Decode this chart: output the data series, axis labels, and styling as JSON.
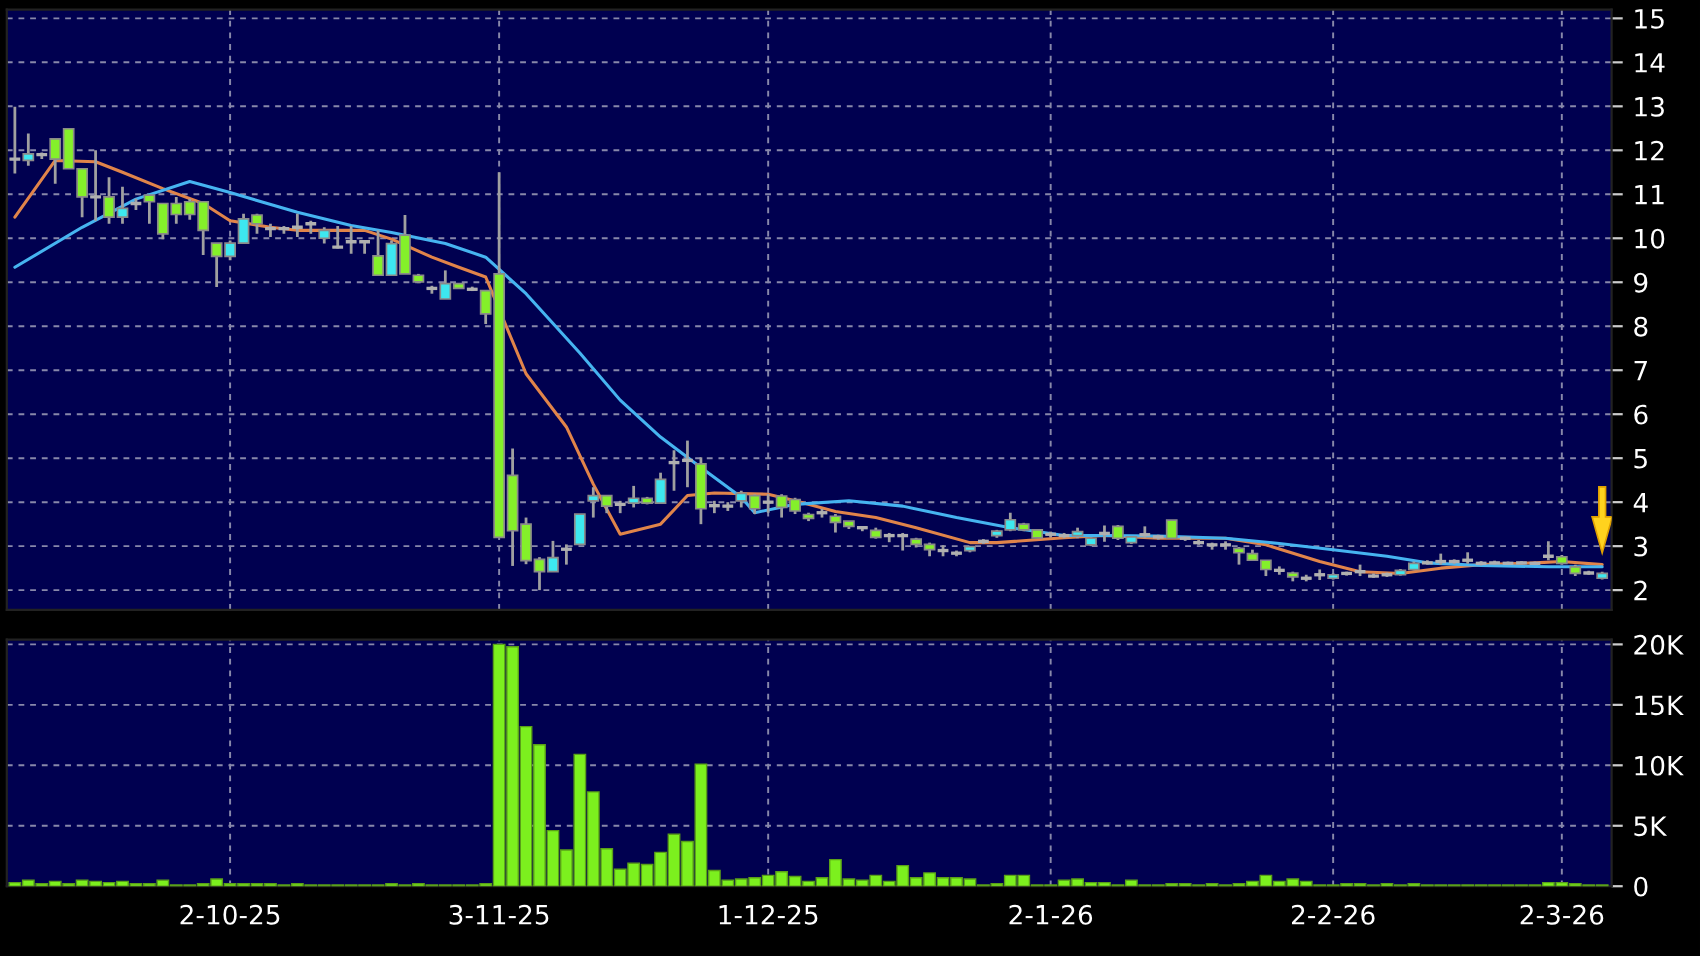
{
  "chart_data": [
    {
      "type": "candlestick",
      "categories": [
        null,
        null,
        null,
        null,
        null,
        null,
        null,
        null,
        null,
        null,
        null,
        null,
        null,
        null,
        null,
        null,
        null,
        null,
        null,
        null,
        null,
        null,
        null,
        null,
        null,
        null,
        null,
        null,
        null,
        null,
        null,
        null,
        null,
        null,
        null,
        null,
        null,
        null,
        null,
        null,
        null,
        null,
        null,
        null,
        null,
        null,
        null,
        null,
        null,
        null,
        null,
        null,
        null,
        null,
        null,
        null,
        null,
        null,
        null,
        null,
        null,
        null,
        null,
        null,
        null,
        null,
        null,
        null,
        null,
        null,
        null,
        null,
        null,
        null,
        null,
        null,
        null,
        null,
        null,
        null,
        null,
        null,
        null,
        null,
        null,
        null,
        null,
        null,
        null,
        null,
        null,
        null,
        null,
        null,
        null,
        null,
        null,
        null,
        null,
        null,
        null,
        null,
        null,
        null,
        null,
        null,
        null,
        null,
        null,
        null,
        null,
        null,
        null,
        null,
        null,
        null,
        null,
        null,
        null
      ],
      "ohlc": [
        [
          11.8,
          12.99,
          11.47,
          11.8
        ],
        [
          11.77,
          12.38,
          11.65,
          11.92
        ],
        [
          11.9,
          11.95,
          11.8,
          11.9
        ],
        [
          12.26,
          12.26,
          11.24,
          11.8
        ],
        [
          12.49,
          12.49,
          11.58,
          11.58
        ],
        [
          11.58,
          11.58,
          10.48,
          10.94
        ],
        [
          10.94,
          12.0,
          10.4,
          10.94
        ],
        [
          10.94,
          11.39,
          10.33,
          10.48
        ],
        [
          10.48,
          11.17,
          10.33,
          10.68
        ],
        [
          10.79,
          10.9,
          10.64,
          10.79
        ],
        [
          10.98,
          10.98,
          10.33,
          10.83
        ],
        [
          10.79,
          10.79,
          9.98,
          10.1
        ],
        [
          10.79,
          10.94,
          10.33,
          10.54
        ],
        [
          10.83,
          10.9,
          10.42,
          10.54
        ],
        [
          10.83,
          10.83,
          9.62,
          10.18
        ],
        [
          9.89,
          9.89,
          8.89,
          9.59
        ],
        [
          9.59,
          9.95,
          9.5,
          9.89
        ],
        [
          9.89,
          10.56,
          9.89,
          10.44
        ],
        [
          10.53,
          10.56,
          10.1,
          10.33
        ],
        [
          10.22,
          10.33,
          10.03,
          10.22
        ],
        [
          10.22,
          10.28,
          10.1,
          10.22
        ],
        [
          10.25,
          10.56,
          10.03,
          10.25
        ],
        [
          10.33,
          10.4,
          10.1,
          10.33
        ],
        [
          10.0,
          10.25,
          9.88,
          10.18
        ],
        [
          9.8,
          10.28,
          9.77,
          9.8
        ],
        [
          9.92,
          10.28,
          9.65,
          9.92
        ],
        [
          9.92,
          9.95,
          9.65,
          9.92
        ],
        [
          9.6,
          10.18,
          9.16,
          9.16
        ],
        [
          9.16,
          9.95,
          9.16,
          9.88
        ],
        [
          10.07,
          10.53,
          9.19,
          9.19
        ],
        [
          9.16,
          9.19,
          8.98,
          9.01
        ],
        [
          8.86,
          8.92,
          8.74,
          8.86
        ],
        [
          8.62,
          9.27,
          8.62,
          8.97
        ],
        [
          8.97,
          8.97,
          8.86,
          8.86
        ],
        [
          8.84,
          8.9,
          8.8,
          8.84
        ],
        [
          8.81,
          8.81,
          8.05,
          8.28
        ],
        [
          9.19,
          11.5,
          3.2,
          3.2
        ],
        [
          4.61,
          5.22,
          2.55,
          3.35
        ],
        [
          3.5,
          3.65,
          2.59,
          2.67
        ],
        [
          2.7,
          2.75,
          2.0,
          2.42
        ],
        [
          2.42,
          3.12,
          2.42,
          2.74
        ],
        [
          2.93,
          3.04,
          2.58,
          2.93
        ],
        [
          3.04,
          3.73,
          3.04,
          3.73
        ],
        [
          4.03,
          4.34,
          3.65,
          4.15
        ],
        [
          4.15,
          4.15,
          3.75,
          3.91
        ],
        [
          3.95,
          4.03,
          3.75,
          3.95
        ],
        [
          3.98,
          4.37,
          3.88,
          4.09
        ],
        [
          4.09,
          4.12,
          3.95,
          3.98
        ],
        [
          3.98,
          4.67,
          3.98,
          4.52
        ],
        [
          4.9,
          5.18,
          4.26,
          4.9
        ],
        [
          4.95,
          5.4,
          4.34,
          4.95
        ],
        [
          4.87,
          5.02,
          3.5,
          3.85
        ],
        [
          3.92,
          4.03,
          3.75,
          3.92
        ],
        [
          3.91,
          4.0,
          3.8,
          3.91
        ],
        [
          4.03,
          4.26,
          3.88,
          4.2
        ],
        [
          4.15,
          4.18,
          3.73,
          3.85
        ],
        [
          4.0,
          4.18,
          3.76,
          4.0
        ],
        [
          4.14,
          4.18,
          3.65,
          3.88
        ],
        [
          4.06,
          4.1,
          3.73,
          3.8
        ],
        [
          3.72,
          3.76,
          3.57,
          3.63
        ],
        [
          3.76,
          3.85,
          3.65,
          3.76
        ],
        [
          3.68,
          3.73,
          3.31,
          3.54
        ],
        [
          3.57,
          3.57,
          3.39,
          3.45
        ],
        [
          3.42,
          3.45,
          3.34,
          3.42
        ],
        [
          3.36,
          3.42,
          3.17,
          3.2
        ],
        [
          3.24,
          3.3,
          3.09,
          3.24
        ],
        [
          3.24,
          3.3,
          2.9,
          3.24
        ],
        [
          3.16,
          3.19,
          2.97,
          3.04
        ],
        [
          3.04,
          3.08,
          2.77,
          2.92
        ],
        [
          2.9,
          3.02,
          2.77,
          2.9
        ],
        [
          2.84,
          2.9,
          2.77,
          2.84
        ],
        [
          2.9,
          3.0,
          2.86,
          2.99
        ],
        [
          3.11,
          3.16,
          3.05,
          3.11
        ],
        [
          3.24,
          3.37,
          3.19,
          3.34
        ],
        [
          3.37,
          3.76,
          3.34,
          3.6
        ],
        [
          3.5,
          3.53,
          3.34,
          3.37
        ],
        [
          3.37,
          3.37,
          3.19,
          3.19
        ],
        [
          3.27,
          3.33,
          3.2,
          3.27
        ],
        [
          3.24,
          3.3,
          3.18,
          3.24
        ],
        [
          3.24,
          3.42,
          3.18,
          3.33
        ],
        [
          3.03,
          3.2,
          3.0,
          3.18
        ],
        [
          3.29,
          3.47,
          3.1,
          3.29
        ],
        [
          3.45,
          3.48,
          3.14,
          3.18
        ],
        [
          3.08,
          3.23,
          3.05,
          3.21
        ],
        [
          3.26,
          3.45,
          3.18,
          3.26
        ],
        [
          3.21,
          3.26,
          3.15,
          3.21
        ],
        [
          3.59,
          3.59,
          3.18,
          3.18
        ],
        [
          3.18,
          3.22,
          3.12,
          3.18
        ],
        [
          3.08,
          3.14,
          3.03,
          3.08
        ],
        [
          3.03,
          3.08,
          2.92,
          3.03
        ],
        [
          3.03,
          3.11,
          2.92,
          3.03
        ],
        [
          2.95,
          2.98,
          2.58,
          2.85
        ],
        [
          2.83,
          2.92,
          2.68,
          2.68
        ],
        [
          2.68,
          2.68,
          2.32,
          2.47
        ],
        [
          2.45,
          2.54,
          2.35,
          2.45
        ],
        [
          2.39,
          2.42,
          2.2,
          2.3
        ],
        [
          2.27,
          2.35,
          2.2,
          2.27
        ],
        [
          2.35,
          2.47,
          2.23,
          2.35
        ],
        [
          2.27,
          2.38,
          2.24,
          2.35
        ],
        [
          2.38,
          2.42,
          2.33,
          2.38
        ],
        [
          2.42,
          2.58,
          2.32,
          2.42
        ],
        [
          2.32,
          2.38,
          2.28,
          2.32
        ],
        [
          2.35,
          2.4,
          2.3,
          2.35
        ],
        [
          2.35,
          2.48,
          2.33,
          2.45
        ],
        [
          2.47,
          2.65,
          2.45,
          2.61
        ],
        [
          2.62,
          2.68,
          2.58,
          2.62
        ],
        [
          2.65,
          2.83,
          2.58,
          2.65
        ],
        [
          2.65,
          2.7,
          2.6,
          2.65
        ],
        [
          2.68,
          2.86,
          2.6,
          2.68
        ],
        [
          2.61,
          2.66,
          2.56,
          2.61
        ],
        [
          2.62,
          2.67,
          2.58,
          2.62
        ],
        [
          2.61,
          2.65,
          2.57,
          2.61
        ],
        [
          2.62,
          2.66,
          2.58,
          2.62
        ],
        [
          2.61,
          2.65,
          2.57,
          2.61
        ],
        [
          2.77,
          3.11,
          2.68,
          2.77
        ],
        [
          2.76,
          2.8,
          2.58,
          2.61
        ],
        [
          2.53,
          2.58,
          2.32,
          2.38
        ],
        [
          2.39,
          2.44,
          2.35,
          2.39
        ],
        [
          2.27,
          2.42,
          2.24,
          2.38
        ]
      ],
      "colors": [
        "#9a9a9a",
        "#3de8f0",
        "#9a9a9a",
        "#84f02a",
        "#84f02a",
        "#84f02a",
        "#9a9a9a",
        "#84f02a",
        "#3de8f0",
        "#9a9a9a",
        "#84f02a",
        "#84f02a",
        "#84f02a",
        "#84f02a",
        "#84f02a",
        "#84f02a",
        "#3de8f0",
        "#3de8f0",
        "#84f02a",
        "#9a9a9a",
        "#9a9a9a",
        "#9a9a9a",
        "#9a9a9a",
        "#3de8f0",
        "#9a9a9a",
        "#9a9a9a",
        "#9a9a9a",
        "#84f02a",
        "#3de8f0",
        "#84f02a",
        "#84f02a",
        "#9a9a9a",
        "#3de8f0",
        "#84f02a",
        "#9a9a9a",
        "#84f02a",
        "#84f02a",
        "#84f02a",
        "#84f02a",
        "#84f02a",
        "#3de8f0",
        "#9a9a9a",
        "#3de8f0",
        "#3de8f0",
        "#84f02a",
        "#9a9a9a",
        "#3de8f0",
        "#84f02a",
        "#3de8f0",
        "#9a9a9a",
        "#9a9a9a",
        "#84f02a",
        "#9a9a9a",
        "#9a9a9a",
        "#3de8f0",
        "#84f02a",
        "#9a9a9a",
        "#84f02a",
        "#84f02a",
        "#84f02a",
        "#9a9a9a",
        "#84f02a",
        "#84f02a",
        "#9a9a9a",
        "#84f02a",
        "#9a9a9a",
        "#9a9a9a",
        "#84f02a",
        "#84f02a",
        "#9a9a9a",
        "#9a9a9a",
        "#3de8f0",
        "#9a9a9a",
        "#3de8f0",
        "#3de8f0",
        "#84f02a",
        "#84f02a",
        "#9a9a9a",
        "#9a9a9a",
        "#3de8f0",
        "#3de8f0",
        "#9a9a9a",
        "#84f02a",
        "#3de8f0",
        "#9a9a9a",
        "#9a9a9a",
        "#84f02a",
        "#9a9a9a",
        "#9a9a9a",
        "#9a9a9a",
        "#9a9a9a",
        "#84f02a",
        "#84f02a",
        "#84f02a",
        "#9a9a9a",
        "#84f02a",
        "#9a9a9a",
        "#9a9a9a",
        "#3de8f0",
        "#9a9a9a",
        "#9a9a9a",
        "#9a9a9a",
        "#9a9a9a",
        "#3de8f0",
        "#3de8f0",
        "#9a9a9a",
        "#9a9a9a",
        "#9a9a9a",
        "#9a9a9a",
        "#9a9a9a",
        "#9a9a9a",
        "#9a9a9a",
        "#9a9a9a",
        "#9a9a9a",
        "#9a9a9a",
        "#84f02a",
        "#84f02a",
        "#9a9a9a",
        "#3de8f0"
      ],
      "series": [
        {
          "type": "line",
          "color": "#e0844a",
          "values": [
            10.48,
            null,
            null,
            11.77,
            null,
            null,
            11.74,
            null,
            11.5,
            null,
            null,
            11.13,
            null,
            null,
            10.79,
            null,
            10.4,
            null,
            null,
            10.25,
            null,
            10.18,
            null,
            null,
            null,
            null,
            10.18,
            null,
            9.98,
            null,
            null,
            9.57,
            null,
            9.34,
            null,
            9.12,
            null,
            null,
            6.92,
            null,
            null,
            5.71,
            null,
            4.41,
            null,
            3.27,
            null,
            null,
            3.5,
            null,
            4.15,
            null,
            4.21,
            null,
            null,
            null,
            4.18,
            null,
            4.03,
            null,
            null,
            3.79,
            null,
            null,
            3.65,
            null,
            null,
            3.42,
            null,
            null,
            null,
            3.08,
            null,
            3.08,
            null,
            null,
            null,
            null,
            3.19,
            null,
            null,
            3.24,
            null,
            null,
            null,
            3.18,
            null,
            null,
            null,
            null,
            3.18,
            null,
            null,
            3.03,
            null,
            null,
            null,
            2.65,
            null,
            null,
            2.42,
            null,
            null,
            2.38,
            null,
            null,
            2.5,
            null,
            null,
            2.58,
            null,
            null,
            null,
            2.62,
            null,
            2.65,
            null,
            null,
            2.58
          ]
        },
        {
          "type": "line",
          "color": "#46b4f0",
          "values": [
            9.34,
            null,
            null,
            null,
            null,
            10.25,
            null,
            null,
            null,
            10.89,
            null,
            null,
            null,
            11.29,
            null,
            null,
            11.04,
            null,
            null,
            null,
            null,
            10.59,
            null,
            null,
            null,
            10.29,
            null,
            null,
            10.13,
            null,
            null,
            null,
            9.88,
            null,
            null,
            9.57,
            null,
            null,
            8.74,
            null,
            null,
            null,
            7.39,
            null,
            null,
            6.32,
            null,
            null,
            5.48,
            null,
            null,
            4.79,
            null,
            null,
            4.11,
            3.76,
            null,
            null,
            3.95,
            null,
            null,
            null,
            4.03,
            null,
            null,
            null,
            3.91,
            null,
            null,
            null,
            3.65,
            null,
            null,
            null,
            3.42,
            null,
            null,
            null,
            3.24,
            null,
            null,
            3.24,
            null,
            null,
            null,
            3.23,
            null,
            null,
            null,
            null,
            3.18,
            null,
            null,
            null,
            3.06,
            null,
            null,
            null,
            2.92,
            null,
            null,
            null,
            2.77,
            null,
            null,
            2.62,
            null,
            null,
            null,
            2.56,
            null,
            null,
            null,
            null,
            2.53,
            null,
            null,
            null,
            2.53
          ]
        }
      ],
      "ylim": [
        1.55,
        15.2
      ],
      "yticks": [
        2,
        3,
        4,
        5,
        6,
        7,
        8,
        9,
        10,
        11,
        12,
        13,
        14,
        15
      ],
      "grid": true,
      "tick_labels": "y"
    },
    {
      "type": "bar",
      "categories": [
        null,
        null,
        null,
        null,
        null,
        null,
        null,
        null,
        null,
        null,
        null,
        null,
        null,
        null,
        null,
        null,
        "2-10-25",
        null,
        null,
        null,
        null,
        null,
        null,
        null,
        null,
        null,
        null,
        null,
        null,
        null,
        null,
        null,
        null,
        null,
        null,
        null,
        "3-11-25",
        null,
        null,
        null,
        null,
        null,
        null,
        null,
        null,
        null,
        null,
        null,
        null,
        null,
        null,
        null,
        null,
        null,
        null,
        null,
        "1-12-25",
        null,
        null,
        null,
        null,
        null,
        null,
        null,
        null,
        null,
        null,
        null,
        null,
        null,
        null,
        null,
        null,
        null,
        null,
        null,
        null,
        "2-1-26",
        null,
        null,
        null,
        null,
        null,
        null,
        null,
        null,
        null,
        null,
        null,
        null,
        null,
        null,
        null,
        null,
        null,
        null,
        null,
        null,
        "2-2-26",
        null,
        null,
        null,
        null,
        null,
        null,
        null,
        null,
        null,
        null,
        null,
        null,
        null,
        null,
        null,
        null,
        "2-3-26",
        null,
        null,
        null
      ],
      "values": [
        300,
        500,
        200,
        400,
        200,
        500,
        400,
        300,
        400,
        200,
        200,
        500,
        100,
        100,
        200,
        600,
        200,
        200,
        200,
        200,
        100,
        200,
        100,
        100,
        100,
        100,
        100,
        100,
        200,
        100,
        200,
        100,
        100,
        100,
        100,
        200,
        20000,
        19800,
        13200,
        11700,
        4600,
        3000,
        10900,
        7800,
        3100,
        1400,
        1900,
        1800,
        2800,
        4300,
        3700,
        10100,
        1300,
        500,
        600,
        700,
        900,
        1200,
        800,
        400,
        700,
        2200,
        600,
        500,
        900,
        400,
        1700,
        700,
        1100,
        700,
        700,
        600,
        100,
        200,
        900,
        900,
        100,
        100,
        500,
        600,
        300,
        300,
        100,
        500,
        100,
        100,
        200,
        200,
        100,
        200,
        100,
        200,
        400,
        900,
        400,
        600,
        400,
        100,
        100,
        200,
        200,
        100,
        200,
        100,
        200,
        100,
        100,
        100,
        100,
        100,
        100,
        100,
        100,
        100,
        300,
        300,
        200,
        100,
        100
      ],
      "color": "#7cf01e",
      "ylim": [
        0,
        20400
      ],
      "yticks": [
        0,
        {
          "value": 5000,
          "label": "5K"
        },
        {
          "value": 10000,
          "label": "10K"
        },
        {
          "value": 15000,
          "label": "15K"
        },
        {
          "value": 20000,
          "label": "20K"
        }
      ],
      "grid": true
    }
  ]
}
